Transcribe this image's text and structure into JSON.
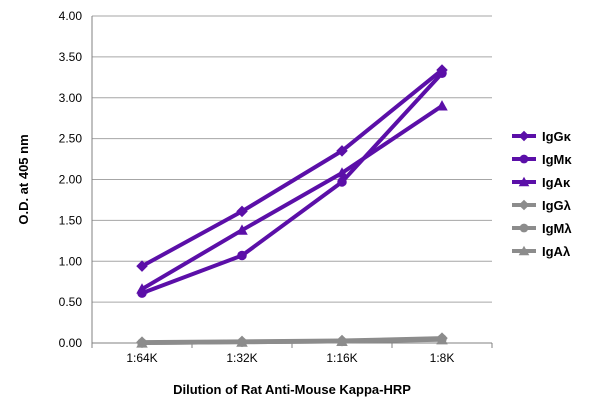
{
  "chart_data": {
    "type": "line",
    "title": "",
    "xlabel": "Dilution of Rat Anti-Mouse Kappa-HRP",
    "ylabel": "O.D. at 405 nm",
    "categories": [
      "1:64K",
      "1:32K",
      "1:16K",
      "1:8K"
    ],
    "ylim": [
      0,
      4
    ],
    "yticks": [
      "0.00",
      "0.50",
      "1.00",
      "1.50",
      "2.00",
      "2.50",
      "3.00",
      "3.50",
      "4.00"
    ],
    "grid": "horizontal",
    "legend_position": "right",
    "series": [
      {
        "name": "IgGκ",
        "values": [
          0.94,
          1.61,
          2.35,
          3.34
        ],
        "color": "#5b0fa8",
        "marker": "diamond"
      },
      {
        "name": "IgMκ",
        "values": [
          0.61,
          1.07,
          1.97,
          3.3
        ],
        "color": "#5b0fa8",
        "marker": "circle"
      },
      {
        "name": "IgAκ",
        "values": [
          0.66,
          1.38,
          2.08,
          2.9
        ],
        "color": "#5b0fa8",
        "marker": "triangle"
      },
      {
        "name": "IgGλ",
        "values": [
          0.01,
          0.02,
          0.03,
          0.06
        ],
        "color": "#8c8c8c",
        "marker": "diamond"
      },
      {
        "name": "IgMλ",
        "values": [
          0.0,
          0.01,
          0.02,
          0.05
        ],
        "color": "#8c8c8c",
        "marker": "circle"
      },
      {
        "name": "IgAλ",
        "values": [
          0.0,
          0.01,
          0.02,
          0.04
        ],
        "color": "#8c8c8c",
        "marker": "triangle"
      }
    ]
  }
}
